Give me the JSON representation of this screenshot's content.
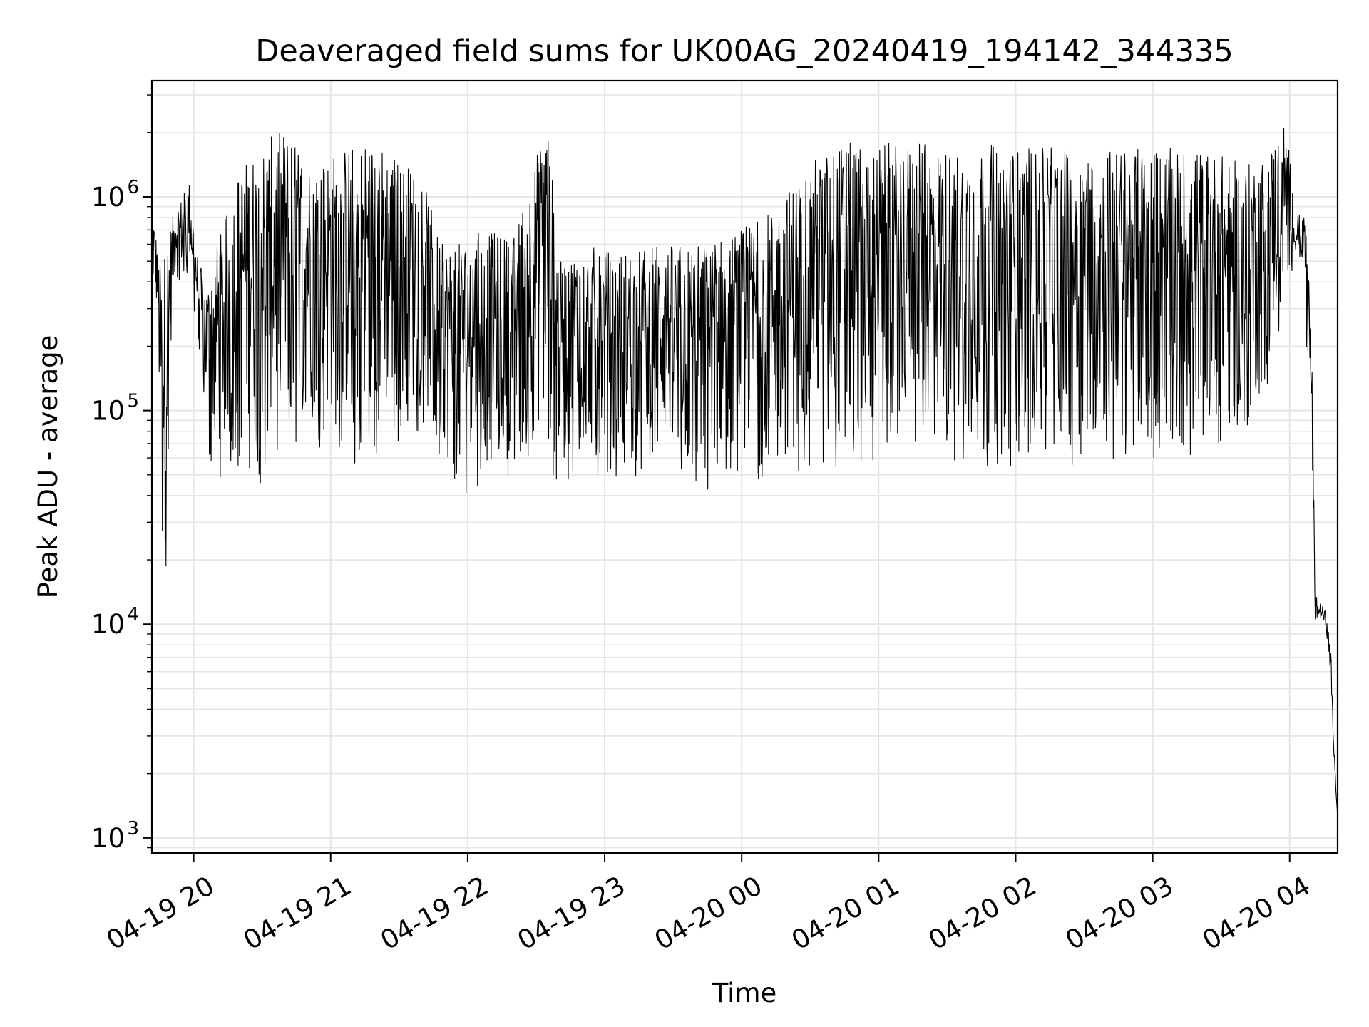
{
  "chart_data": {
    "type": "line",
    "title": "Deaveraged field sums for UK00AG_20240419_194142_344335",
    "xlabel": "Time",
    "ylabel": "Peak ADU - average",
    "yscale": "log",
    "ylim": [
      850,
      3500000
    ],
    "xlim": [
      "2024-04-19 19:41:42",
      "2024-04-20 04:21:00"
    ],
    "grid": true,
    "line_color": "#000000",
    "grid_color": "#e6e6e6",
    "x_ticks": [
      {
        "t": "2024-04-19 20:00",
        "label": "04-19 20"
      },
      {
        "t": "2024-04-19 21:00",
        "label": "04-19 21"
      },
      {
        "t": "2024-04-19 22:00",
        "label": "04-19 22"
      },
      {
        "t": "2024-04-19 23:00",
        "label": "04-19 23"
      },
      {
        "t": "2024-04-20 00:00",
        "label": "04-20 00"
      },
      {
        "t": "2024-04-20 01:00",
        "label": "04-20 01"
      },
      {
        "t": "2024-04-20 02:00",
        "label": "04-20 02"
      },
      {
        "t": "2024-04-20 03:00",
        "label": "04-20 03"
      },
      {
        "t": "2024-04-20 04:00",
        "label": "04-20 04"
      }
    ],
    "y_ticks": [
      {
        "value": 1000,
        "base": "10",
        "exp": "3"
      },
      {
        "value": 10000,
        "base": "10",
        "exp": "4"
      },
      {
        "value": 100000,
        "base": "10",
        "exp": "5"
      },
      {
        "value": 1000000,
        "base": "10",
        "exp": "6"
      }
    ],
    "series": [
      {
        "x": [
          "2024-04-19 19:41:42",
          "2024-04-19 19:44:00",
          "2024-04-19 19:46:00",
          "2024-04-19 19:48:00",
          "2024-04-19 19:50:00",
          "2024-04-19 19:52:00",
          "2024-04-19 19:55:00",
          "2024-04-19 19:58:00",
          "2024-04-19 20:02:00",
          "2024-04-19 20:06:00",
          "2024-04-19 20:10:00",
          "2024-04-19 20:14:00",
          "2024-04-19 20:20:00",
          "2024-04-19 20:30:00",
          "2024-04-19 20:40:00",
          "2024-04-19 20:50:00",
          "2024-04-19 21:00:00",
          "2024-04-19 21:10:00",
          "2024-04-19 21:20:00",
          "2024-04-19 21:30:00",
          "2024-04-19 21:40:00",
          "2024-04-19 21:48:00",
          "2024-04-19 21:55:00",
          "2024-04-19 22:05:00",
          "2024-04-19 22:20:00",
          "2024-04-19 22:35:00",
          "2024-04-19 22:40:00",
          "2024-04-19 22:50:00",
          "2024-04-19 23:05:00",
          "2024-04-19 23:20:00",
          "2024-04-19 23:40:00",
          "2024-04-20 00:00:00",
          "2024-04-20 00:15:00",
          "2024-04-20 00:30:00",
          "2024-04-20 00:45:00",
          "2024-04-20 01:00:00",
          "2024-04-20 01:15:00",
          "2024-04-20 01:30:00",
          "2024-04-20 01:45:00",
          "2024-04-20 02:00:00",
          "2024-04-20 02:15:00",
          "2024-04-20 02:30:00",
          "2024-04-20 02:45:00",
          "2024-04-20 03:00:00",
          "2024-04-20 03:15:00",
          "2024-04-20 03:30:00",
          "2024-04-20 03:40:00",
          "2024-04-20 03:50:00",
          "2024-04-20 03:58:00",
          "2024-04-20 04:02:00",
          "2024-04-20 04:06:00",
          "2024-04-20 04:08:00",
          "2024-04-20 04:10:00",
          "2024-04-20 04:11:00",
          "2024-04-20 04:12:00",
          "2024-04-20 04:14:00",
          "2024-04-20 04:16:00",
          "2024-04-20 04:18:00",
          "2024-04-20 04:19:00",
          "2024-04-20 04:20:00",
          "2024-04-20 04:21:00"
        ],
        "min": [
          300000,
          250000,
          17000,
          15000,
          180000,
          400000,
          380000,
          450000,
          200000,
          60000,
          40000,
          55000,
          45000,
          40000,
          55000,
          75000,
          60000,
          55000,
          55000,
          70000,
          80000,
          55000,
          38000,
          45000,
          50000,
          60000,
          40000,
          55000,
          42000,
          55000,
          36000,
          50000,
          45000,
          55000,
          42000,
          60000,
          70000,
          55000,
          55000,
          55000,
          55000,
          55000,
          55000,
          60000,
          60000,
          60000,
          55000,
          120000,
          300000,
          500000,
          400000,
          150000,
          30000,
          8000,
          10000,
          10000,
          9000,
          5000,
          2500,
          1800,
          1000
        ],
        "max": [
          1000000,
          600000,
          450000,
          650000,
          750000,
          900000,
          1000000,
          1200000,
          500000,
          400000,
          600000,
          800000,
          1400000,
          1800000,
          2100000,
          1500000,
          1600000,
          1800000,
          1900000,
          1500000,
          1300000,
          600000,
          600000,
          700000,
          650000,
          2400000,
          500000,
          600000,
          550000,
          600000,
          600000,
          700000,
          900000,
          1500000,
          1800000,
          1800000,
          1800000,
          1700000,
          1800000,
          1700000,
          1700000,
          1700000,
          1700000,
          1700000,
          1700000,
          1600000,
          1400000,
          1600000,
          2300000,
          1050000,
          900000,
          600000,
          150000,
          17000,
          14000,
          13000,
          12000,
          9000,
          4000,
          2200,
          1300
        ]
      }
    ]
  }
}
